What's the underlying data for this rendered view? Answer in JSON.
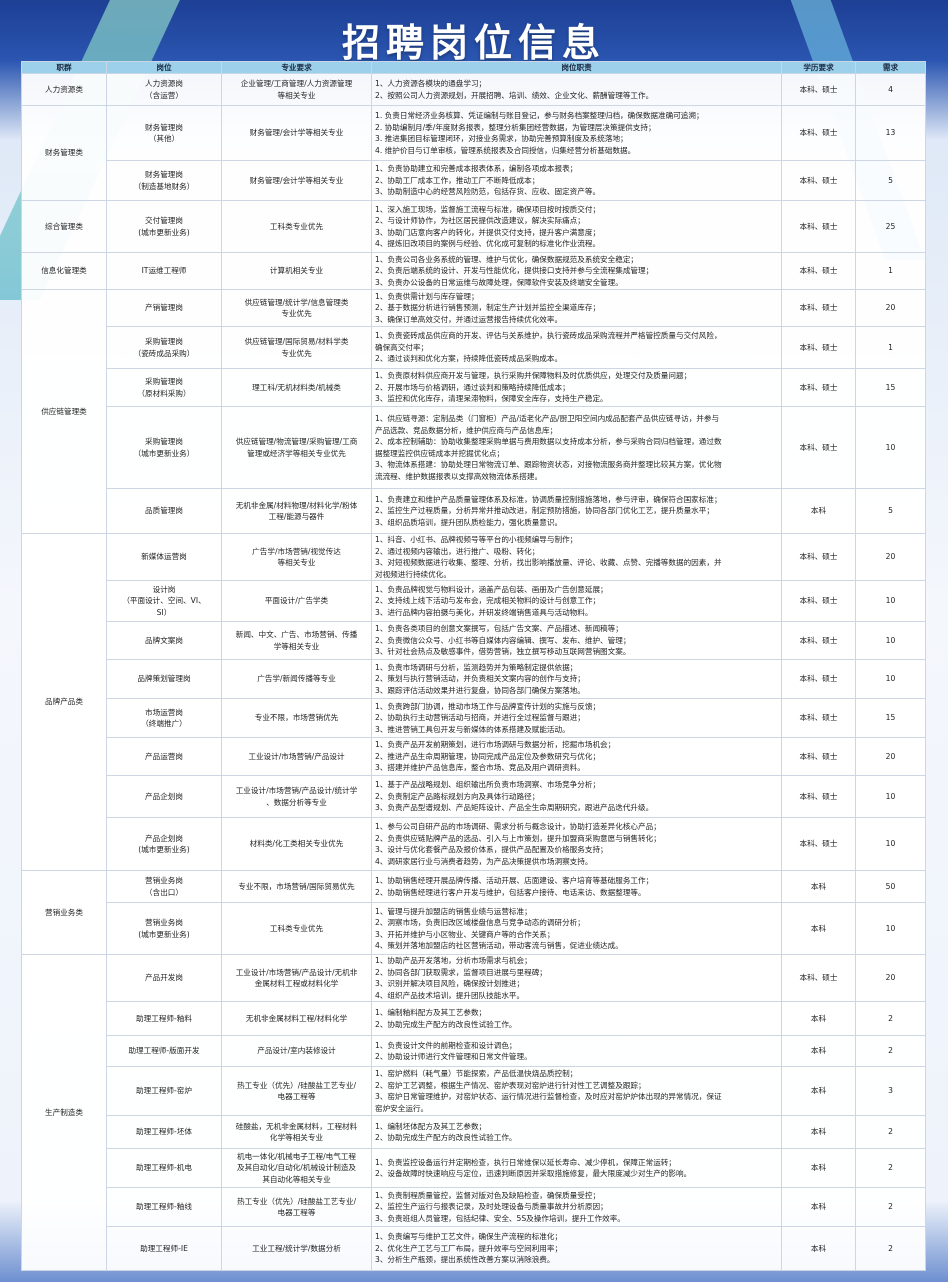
{
  "title": "招聘岗位信息",
  "colors": {
    "header_bg": "#9dd0ea",
    "banner": "#1d3f94"
  },
  "headers": [
    "职群",
    "岗位",
    "专业要求",
    "岗位职责",
    "学历要求",
    "需求"
  ],
  "groups": [
    {
      "name": "人力资源类",
      "rows": [
        {
          "post": [
            "人力资源岗",
            "（含运营）"
          ],
          "major": [
            "企业管理/工商管理/人力资源管理",
            "等相关专业"
          ],
          "duties": [
            "1、人力资源各模块的通盘学习；",
            "2、按照公司人力资源规划，开展招聘、培训、绩效、企业文化、薪酬管理等工作。"
          ],
          "edu": "本科、硕士",
          "num": "4"
        }
      ]
    },
    {
      "name": "财务管理类",
      "rows": [
        {
          "post": [
            "财务管理岗",
            "（其他）"
          ],
          "major": [
            "财务管理/会计学等相关专业"
          ],
          "duties": [
            "1. 负责日常经济业务核算、凭证编制与账目登记，参与财务档案整理归档，确保数据准确可追溯；",
            "2. 协助编制月/季/年度财务报表，整理分析集团经营数据，为管理层决策提供支持；",
            "3. 推进集团目标管理闭环，对接业务需求，协助完善预算制度及系统落地；",
            "4. 维护价目与订单审核，管理系统报表及合同授信，归集经营分析基础数据。"
          ],
          "edu": "本科、硕士",
          "num": "13"
        },
        {
          "post": [
            "财务管理岗",
            "（制造基地财务）"
          ],
          "major": [
            "财务管理/会计学等相关专业"
          ],
          "duties": [
            "1、负责协助建立和完善成本报表体系，编制各项成本报表；",
            "2、协助工厂成本工作，推动工厂不断降低成本；",
            "3、协助制造中心的经营风险防范，包括存货、应收、固定资产等。"
          ],
          "edu": "本科、硕士",
          "num": "5"
        }
      ]
    },
    {
      "name": "综合管理类",
      "rows": [
        {
          "post": [
            "交付管理岗",
            "(城市更新业务)"
          ],
          "major": [
            "工科类专业优先"
          ],
          "duties": [
            "1、深入施工现场，监督施工流程与标准，确保项目按时按质交付；",
            "2、与设计师协作，为社区居民提供改造建议，解决实际痛点；",
            "3、协助门店意向客户的转化，并提供交付支持，提升客户满意度；",
            "4、提炼旧改项目的案例与经验、优化成可复制的标准化作业流程。"
          ],
          "edu": "本科、硕士",
          "num": "25"
        }
      ]
    },
    {
      "name": "信息化管理类",
      "rows": [
        {
          "post": [
            "IT运维工程师"
          ],
          "major": [
            "计算机相关专业"
          ],
          "duties": [
            "1、负责公司各业务系统的管理、维护与优化，确保数据规范及系统安全稳定；",
            "2、负责后端系统的设计、开发与性能优化，提供接口支持并参与全流程集成管理；",
            "3、负责办公设备的日常运维与故障处理，保障软件安装及终端安全管理。"
          ],
          "edu": "本科、硕士",
          "num": "1"
        }
      ]
    },
    {
      "name": "供应链管理类",
      "rows": [
        {
          "post": [
            "产销管理岗"
          ],
          "major": [
            "供应链管理/统计学/信息管理类",
            "专业优先"
          ],
          "duties": [
            "1、负责供需计划与库存管理；",
            "2、基于数据分析进行销售预测，制定生产计划并监控全渠道库存；",
            "3、确保订单高效交付，并通过运营报告持续优化效率。"
          ],
          "edu": "本科、硕士",
          "num": "20"
        },
        {
          "post": [
            "采购管理岗",
            "（瓷砖成品采购）"
          ],
          "major": [
            "供应链管理/国际贸易/材料学类",
            "专业优先"
          ],
          "duties": [
            "1、负责瓷砖成品供应商的开发、评估与关系维护，执行瓷砖成品采购流程并严格管控质量与交付风险，",
            "确保高交付率；",
            "2、通过谈判和优化方案，持续降低瓷砖成品采购成本。"
          ],
          "edu": "本科、硕士",
          "num": "1"
        },
        {
          "post": [
            "采购管理岗",
            "（原材料采购）"
          ],
          "major": [
            "理工科/无机材料类/机械类"
          ],
          "duties": [
            "1、负责原材料供应商开发与管理，执行采购并保障物料及时优质供应，处理交付及质量问题；",
            "2、开展市场与价格调研，通过谈判和策略持续降低成本；",
            "3、监控和优化库存，清理呆滞物料，保障安全库存，支持生产稳定。"
          ],
          "edu": "本科、硕士",
          "num": "15"
        },
        {
          "post": [
            "采购管理岗",
            "（城市更新业务）"
          ],
          "major": [
            "供应链管理/物流管理/采购管理/工商",
            "管理或经济学等相关专业优先"
          ],
          "duties": [
            "1、供应链寻源：定制品类（门窗柜）产品/适老化产品/厨卫阳空间内成品配套产品供应链寻访，并参与",
            "产品选款、竞品数据分析，维护供应商与产品信息库；",
            "2、成本控制辅助：协助收集整理采购单据与费用数据以支持成本分析，参与采购合同归档管理，通过数",
            "据整理监控供应链成本并挖掘优化点；",
            "3、物流体系搭建：协助处理日常物流订单、跟踪物资状态，对接物流服务商并整理比较其方案，优化物",
            "流流程、维护数据报表以支撑高效物流体系搭建。"
          ],
          "edu": "本科、硕士",
          "num": "10"
        },
        {
          "post": [
            "品质管理岗"
          ],
          "major": [
            "无机非金属/材料物理/材料化学/粉体",
            "工程/能源与器件"
          ],
          "duties": [
            "1、负责建立和维护产品质量管理体系及标准，协调质量控制措施落地，参与评审，确保符合国家标准；",
            "2、监控生产过程质量，分析异常并推动改进，制定预防措施，协同各部门优化工艺，提升质量水平；",
            "3、组织品质培训，提升团队质检能力，强化质量意识。"
          ],
          "edu": "本科",
          "num": "5"
        }
      ]
    },
    {
      "name": "品牌产品类",
      "rows": [
        {
          "post": [
            "新媒体运营岗"
          ],
          "major": [
            "广告学/市场营销/视觉传达",
            "等相关专业"
          ],
          "duties": [
            "1、抖音、小红书、品牌视频号等平台的小视频编导与制作；",
            "2、通过视频内容输出，进行推广、吸粉、转化；",
            "3、对短视频数据进行收集、整理、分析，找出影响播放量、评论、收藏、点赞、完播等数据的因素，并",
            "对视频进行持续优化。"
          ],
          "edu": "本科、硕士",
          "num": "20"
        },
        {
          "post": [
            "设计岗",
            "（平面设计、空间、VI、",
            "SI）"
          ],
          "major": [
            "平面设计/广告学类"
          ],
          "duties": [
            "1、负责品牌视觉与物料设计，涵盖产品包装、画册及广告创意延展；",
            "2、支持线上线下活动与发布会，完成相关物料的设计与创意工作；",
            "3、进行品牌内容拍摄与美化，并研发终端销售道具与活动物料。"
          ],
          "edu": "本科、硕士",
          "num": "10"
        },
        {
          "post": [
            "品牌文案岗"
          ],
          "major": [
            "新闻、中文、广告、市场营销、传播",
            "学等相关专业"
          ],
          "duties": [
            "1、负责各类项目的创意文案撰写，包括广告文案、产品描述、新闻稿等；",
            "2、负责微信公众号、小红书等自媒体内容编辑、撰写、发布、维护、管理；",
            "3、针对社会热点及敏感事件，借势营销，独立撰写移动互联网营销图文案。"
          ],
          "edu": "本科、硕士",
          "num": "10"
        },
        {
          "post": [
            "品牌策划管理岗"
          ],
          "major": [
            "广告学/新闻传播等专业"
          ],
          "duties": [
            "1、负责市场调研与分析，监测趋势并为策略制定提供依据；",
            "2、策划与执行营销活动，并负责相关文案内容的创作与支持；",
            "3、跟踪评估活动效果并进行复盘，协同各部门确保方案落地。"
          ],
          "edu": "本科、硕士",
          "num": "10"
        },
        {
          "post": [
            "市场运营岗",
            "（终端推广）"
          ],
          "major": [
            "专业不限，市场营销优先"
          ],
          "duties": [
            "1、负责跨部门协调，推动市场工作与品牌宣传计划的实施与反馈；",
            "2、协助执行主动营销活动与招商，并进行全过程监督与跟进；",
            "3、推进营销工具包开发与新媒体的体系搭建及赋能活动。"
          ],
          "edu": "本科、硕士",
          "num": "15"
        },
        {
          "post": [
            "产品运营岗"
          ],
          "major": [
            "工业设计/市场营销/产品设计"
          ],
          "duties": [
            "1、负责产品开发前期策划，进行市场调研与数据分析，挖掘市场机会；",
            "2、推进产品生命周期管理，协同完成产品定位及参数研究与优化；",
            "3、搭建并维护产品信息库，整合市场、竞品及用户调研资料。"
          ],
          "edu": "本科、硕士",
          "num": "20"
        },
        {
          "post": [
            "产品企划岗"
          ],
          "major": [
            "工业设计/市场营销/产品设计/统计学",
            "、数据分析等专业"
          ],
          "duties": [
            "1、基于产品战略规划、组织输出所负责市场洞察、市场竞争分析；",
            "2、负责制定产品路标规划方向及具体行动路径；",
            "3、负责产品型谱规划、产品矩阵设计、产品全生命周期研究，跟进产品迭代升级。"
          ],
          "edu": "本科、硕士",
          "num": "10"
        },
        {
          "post": [
            "产品企划岗",
            "(城市更新业务)"
          ],
          "major": [
            "材料类/化工类相关专业优先"
          ],
          "duties": [
            "1、参与公司自研产品的市场调研、需求分析与概念设计，协助打造差异化核心产品；",
            "2、负责供应链贴牌产品的选品、引入与上市策划，提升加盟商采购意愿与销售转化；",
            "3、设计与优化套餐产品及报价体系，提供产品配置及价格服务支持；",
            "4、调研家居行业与消费者趋势，为产品决策提供市场洞察支持。"
          ],
          "edu": "本科、硕士",
          "num": "10"
        }
      ]
    },
    {
      "name": "营销业务类",
      "rows": [
        {
          "post": [
            "营销业务岗",
            "（含出口）"
          ],
          "major": [
            "专业不限，市场营销/国际贸易优先"
          ],
          "duties": [
            "1、协助销售经理开展品牌传播、活动开展、店面建设、客户培育等基础服务工作；",
            "2、协助销售经理进行客户开发与维护，包括客户接待、电话来访、数据整理等。"
          ],
          "edu": "本科",
          "num": "50"
        },
        {
          "post": [
            "营销业务岗",
            "(城市更新业务)"
          ],
          "major": [
            "工科类专业优先"
          ],
          "duties": [
            "1、管理与提升加盟店的销售业绩与运营标准；",
            "2、洞察市场，负责旧改区域楼盘信息与竞争动态的调研分析；",
            "3、开拓并维护与小区物业、关键商户等的合作关系；",
            "4、策划并落地加盟店的社区营销活动，带动客流与销售，促进业绩达成。"
          ],
          "edu": "本科",
          "num": "10"
        }
      ]
    },
    {
      "name": "生产制造类",
      "rows": [
        {
          "post": [
            "产品开发岗"
          ],
          "major": [
            "工业设计/市场营销/产品设计/无机非",
            "金属材料工程或材料化学"
          ],
          "duties": [
            "1、协助产品开发落地，分析市场需求与机会；",
            "2、协同各部门获取需求，监督项目进展与里程碑；",
            "3、识别并解决项目风险，确保按计划推进；",
            "4、组织产品技术培训，提升团队技能水平。"
          ],
          "edu": "本科、硕士",
          "num": "20"
        },
        {
          "post": [
            "助理工程师-釉料"
          ],
          "major": [
            "无机非金属材料工程/材料化学"
          ],
          "duties": [
            "1、编制釉料配方及其工艺参数；",
            "2、协助完成生产配方的改良性试验工作。"
          ],
          "edu": "本科",
          "num": "2"
        },
        {
          "post": [
            "助理工程师-版面开发"
          ],
          "major": [
            "产品设计/室内装修设计"
          ],
          "duties": [
            "1、负责设计文件的前期检查和设计调色；",
            "2、协助设计师进行文件管理和日常文件管理。"
          ],
          "edu": "本科",
          "num": "2"
        },
        {
          "post": [
            "助理工程师-窑炉"
          ],
          "major": [
            "热工专业（优先）/硅酸盐工艺专业/",
            "电器工程等"
          ],
          "duties": [
            "1、窑炉燃料（耗气量）节能探索，产品低温快烧品质控制；",
            "2、窑炉工艺调整，根据生产情况、窑炉表现对窑炉进行针对性工艺调整及跟踪；",
            "3、窑炉日常管理维护，对窑炉状态、运行情况进行监督检查，及时应对窑炉炉体出现的异常情况，保证",
            "窑炉安全运行。"
          ],
          "edu": "本科",
          "num": "3"
        },
        {
          "post": [
            "助理工程师-坯体"
          ],
          "major": [
            "硅酸盐，无机非金属材料，工程材料",
            "化学等相关专业"
          ],
          "duties": [
            "1、编制坯体配方及其工艺参数；",
            "2、协助完成生产配方的改良性试验工作。"
          ],
          "edu": "本科",
          "num": "2"
        },
        {
          "post": [
            "助理工程师-机电"
          ],
          "major": [
            "机电一体化/机械电子工程/电气工程",
            "及其自动化/自动化/机械设计制造及",
            "其自动化等相关专业"
          ],
          "duties": [
            "1、负责监控设备运行并定期检查，执行日常维保以延长寿命、减少停机，保障正常运转；",
            "2、设备故障时快速响应与定位，迅速判断原因并采取措施修复，最大限度减少对生产的影响。"
          ],
          "edu": "本科",
          "num": "2"
        },
        {
          "post": [
            "助理工程师-釉线"
          ],
          "major": [
            "热工专业（优先）/硅酸盐工艺专业/",
            "电器工程等"
          ],
          "duties": [
            "1、负责制程质量管控，监督对版对色及缺陷检查，确保质量受控；",
            "2、监控生产运行与报表记录，及时处理设备与质量事故并分析原因；",
            "3、负责班组人员管理，包括纪律、安全、5S及操作培训，提升工作效率。"
          ],
          "edu": "本科",
          "num": "2"
        },
        {
          "post": [
            "助理工程师-IE"
          ],
          "major": [
            "工业工程/统计学/数据分析"
          ],
          "duties": [
            "1、负责编写与维护工艺文件，确保生产流程的标准化；",
            "2、优化生产工艺与工厂布局，提升效率与空间利用率；",
            "3、分析生产瓶颈，提出系统性改善方案以消除浪费。"
          ],
          "edu": "本科",
          "num": "2"
        }
      ]
    }
  ]
}
